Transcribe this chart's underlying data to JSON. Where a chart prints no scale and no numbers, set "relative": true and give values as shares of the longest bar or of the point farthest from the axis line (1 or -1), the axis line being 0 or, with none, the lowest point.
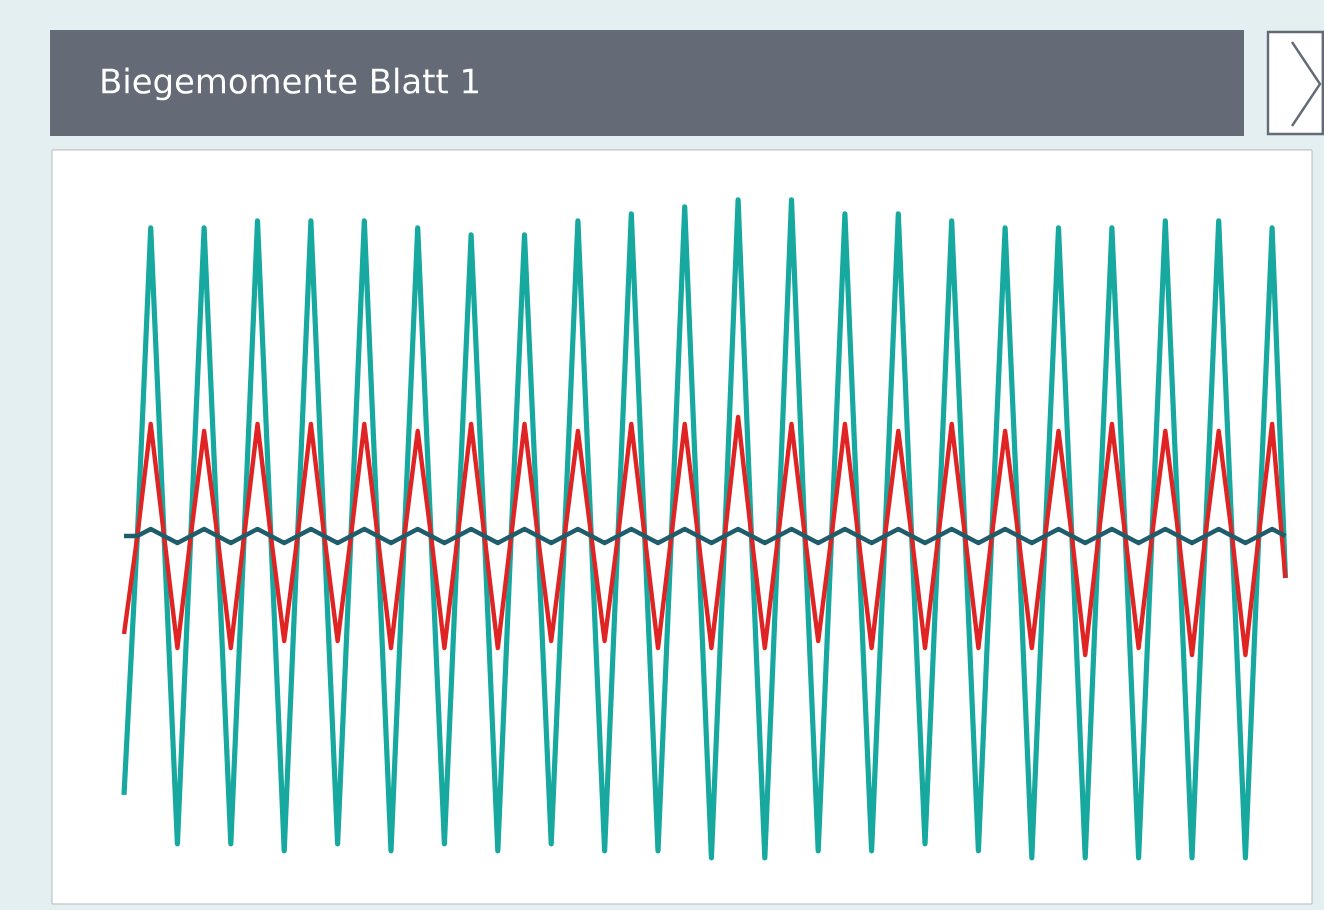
{
  "chart_data": {
    "type": "line",
    "title": "Biegemomente Blatt 1",
    "relative": true,
    "categories": [
      null,
      null,
      null,
      null,
      null,
      null,
      null,
      null,
      null,
      null,
      null,
      null,
      null,
      null,
      null,
      null,
      null,
      null,
      null,
      null,
      null,
      null,
      null,
      null,
      null,
      null,
      null,
      null,
      null,
      null,
      null,
      null,
      null,
      null,
      null,
      null,
      null,
      null,
      null,
      null,
      null,
      null,
      null,
      null,
      null,
      null,
      null,
      null,
      null,
      null,
      null,
      null,
      null,
      null,
      null,
      null,
      null,
      null,
      null,
      null,
      null,
      null,
      null,
      null,
      null,
      null,
      null,
      null,
      null,
      null,
      null,
      null,
      null,
      null,
      null,
      null,
      null,
      null,
      null,
      null,
      null,
      null,
      null,
      null,
      null,
      null,
      null,
      null
    ],
    "series": [
      {
        "color": "#17a9a0",
        "values": [
          0.15,
          0.52,
          0.96,
          0.52,
          0.08,
          0.52,
          0.96,
          0.52,
          0.08,
          0.52,
          0.97,
          0.52,
          0.07,
          0.52,
          0.97,
          0.52,
          0.08,
          0.52,
          0.97,
          0.52,
          0.07,
          0.52,
          0.96,
          0.52,
          0.08,
          0.52,
          0.95,
          0.52,
          0.07,
          0.52,
          0.95,
          0.52,
          0.08,
          0.52,
          0.97,
          0.52,
          0.07,
          0.52,
          0.98,
          0.52,
          0.07,
          0.52,
          0.99,
          0.52,
          0.06,
          0.52,
          1.0,
          0.52,
          0.06,
          0.52,
          1.0,
          0.52,
          0.07,
          0.52,
          0.98,
          0.52,
          0.07,
          0.52,
          0.98,
          0.52,
          0.08,
          0.52,
          0.97,
          0.52,
          0.07,
          0.52,
          0.96,
          0.52,
          0.06,
          0.52,
          0.96,
          0.52,
          0.06,
          0.52,
          0.96,
          0.52,
          0.06,
          0.52,
          0.97,
          0.52,
          0.06,
          0.52,
          0.97,
          0.52,
          0.06,
          0.52,
          0.96,
          0.46
        ]
      },
      {
        "color": "#e02424",
        "values": [
          0.38,
          0.52,
          0.68,
          0.52,
          0.36,
          0.52,
          0.67,
          0.52,
          0.36,
          0.52,
          0.68,
          0.52,
          0.37,
          0.52,
          0.68,
          0.52,
          0.37,
          0.52,
          0.68,
          0.52,
          0.36,
          0.52,
          0.67,
          0.52,
          0.36,
          0.52,
          0.68,
          0.52,
          0.36,
          0.52,
          0.68,
          0.52,
          0.37,
          0.52,
          0.67,
          0.52,
          0.37,
          0.52,
          0.68,
          0.52,
          0.36,
          0.52,
          0.68,
          0.52,
          0.36,
          0.52,
          0.69,
          0.52,
          0.36,
          0.52,
          0.68,
          0.52,
          0.37,
          0.52,
          0.68,
          0.52,
          0.36,
          0.52,
          0.67,
          0.52,
          0.36,
          0.52,
          0.68,
          0.52,
          0.36,
          0.52,
          0.67,
          0.52,
          0.36,
          0.52,
          0.67,
          0.52,
          0.35,
          0.52,
          0.68,
          0.52,
          0.36,
          0.52,
          0.67,
          0.52,
          0.35,
          0.52,
          0.67,
          0.52,
          0.35,
          0.52,
          0.68,
          0.46
        ]
      },
      {
        "color": "#1f5d6b",
        "values": [
          0.52,
          0.52,
          0.53,
          0.52,
          0.51,
          0.52,
          0.53,
          0.52,
          0.51,
          0.52,
          0.53,
          0.52,
          0.51,
          0.52,
          0.53,
          0.52,
          0.51,
          0.52,
          0.53,
          0.52,
          0.51,
          0.52,
          0.53,
          0.52,
          0.51,
          0.52,
          0.53,
          0.52,
          0.51,
          0.52,
          0.53,
          0.52,
          0.51,
          0.52,
          0.53,
          0.52,
          0.51,
          0.52,
          0.53,
          0.52,
          0.51,
          0.52,
          0.53,
          0.52,
          0.51,
          0.52,
          0.53,
          0.52,
          0.51,
          0.52,
          0.53,
          0.52,
          0.51,
          0.52,
          0.53,
          0.52,
          0.51,
          0.52,
          0.53,
          0.52,
          0.51,
          0.52,
          0.53,
          0.52,
          0.51,
          0.52,
          0.53,
          0.52,
          0.51,
          0.52,
          0.53,
          0.52,
          0.51,
          0.52,
          0.53,
          0.52,
          0.51,
          0.52,
          0.53,
          0.52,
          0.51,
          0.52,
          0.53,
          0.52,
          0.51,
          0.52,
          0.53,
          0.52
        ]
      }
    ]
  }
}
